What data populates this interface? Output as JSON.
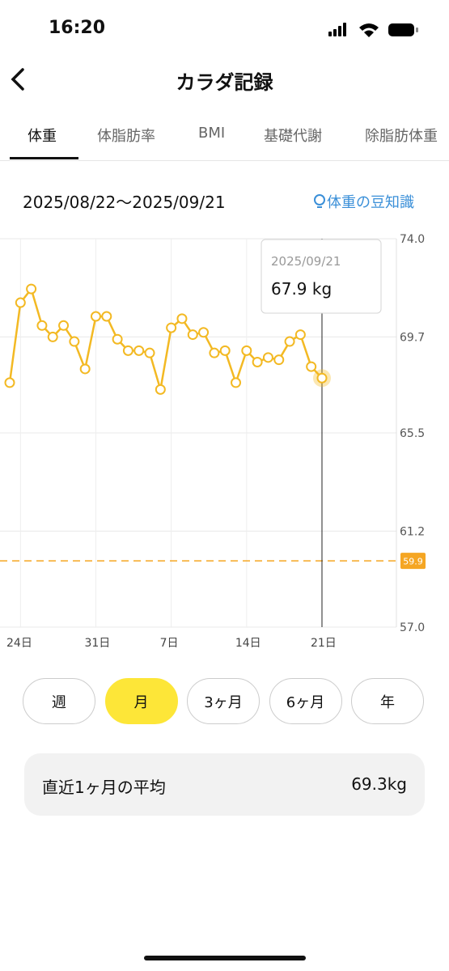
{
  "status": {
    "time": "16:20"
  },
  "header": {
    "title": "カラダ記録"
  },
  "tabs": [
    "体重",
    "体脂肪率",
    "BMI",
    "基礎代謝",
    "除脂肪体重"
  ],
  "date_range": "2025/08/22〜2025/09/21",
  "tips_link": "体重の豆知識",
  "chart_data": {
    "type": "line",
    "categories": [
      null,
      "24日",
      null,
      null,
      null,
      null,
      null,
      null,
      "31日",
      null,
      null,
      null,
      null,
      null,
      null,
      "7日",
      null,
      null,
      null,
      null,
      null,
      null,
      "14日",
      null,
      null,
      null,
      null,
      null,
      null,
      "21日"
    ],
    "series": [
      {
        "color": "#f3b923",
        "values": [
          67.7,
          71.2,
          71.8,
          70.2,
          69.7,
          70.2,
          69.5,
          68.3,
          70.6,
          70.6,
          69.6,
          69.1,
          69.1,
          69.0,
          67.4,
          70.1,
          70.5,
          69.8,
          69.9,
          69.0,
          69.1,
          67.7,
          69.1,
          68.6,
          68.8,
          68.7,
          69.5,
          69.8,
          68.4,
          67.9
        ]
      }
    ],
    "ylim": [
      57,
      74
    ],
    "yticks": [
      {
        "value": 57,
        "label": "57.0"
      },
      61.2,
      65.5,
      69.7,
      {
        "value": 74,
        "label": "74.0"
      }
    ],
    "goal": 59.9,
    "grid": true,
    "tooltip": {
      "date": "2025/09/21",
      "value_label": "67.9 kg"
    }
  },
  "periods": [
    "週",
    "月",
    "3ヶ月",
    "6ヶ月",
    "年"
  ],
  "selected_period": "月",
  "average": {
    "label": "直近1ヶ月の平均",
    "value": "69.3kg"
  }
}
